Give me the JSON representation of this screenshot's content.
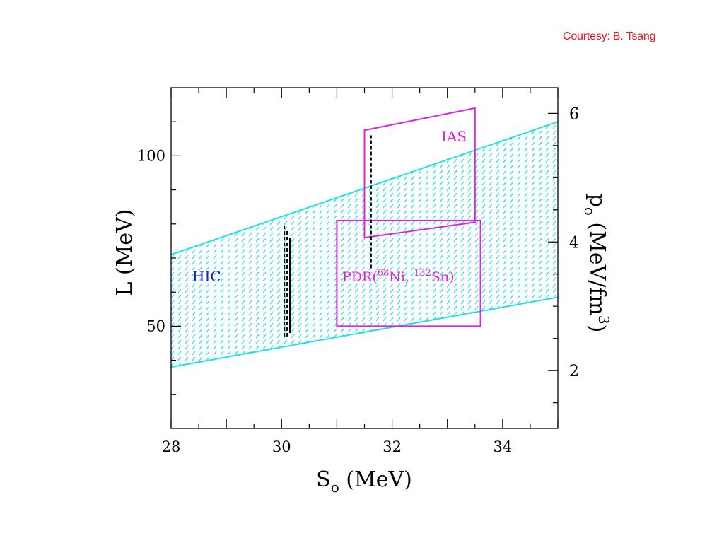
{
  "courtesy": "Courtesy: B. Tsang",
  "colors": {
    "band": "#20e0e8",
    "box": "#e020e0",
    "hic": "#2020c0",
    "courtesy": "#e8141c",
    "axis": "#000000"
  },
  "chart_data": {
    "type": "area",
    "title": "",
    "xlabel": {
      "main": "S",
      "sub": "o",
      "rest": " (MeV)"
    },
    "ylabel": "L (MeV)",
    "y2label": {
      "main": "p",
      "sub": "o",
      "rest1": " (MeV/fm",
      "sup": "3",
      "rest2": ")"
    },
    "xlim": [
      28,
      35
    ],
    "ylim": [
      20,
      120
    ],
    "y2lim": [
      1.1,
      6.4
    ],
    "xticks": [
      28,
      30,
      32,
      34
    ],
    "yticks": [
      50,
      100
    ],
    "y2ticks": [
      2,
      4,
      6
    ],
    "band": {
      "name": "HIC",
      "upper": [
        [
          28,
          71
        ],
        [
          35,
          110
        ]
      ],
      "lower": [
        [
          28,
          38
        ],
        [
          35,
          58.5
        ]
      ]
    },
    "regions": [
      {
        "name": "IAS",
        "polygon": [
          [
            31.5,
            107.5
          ],
          [
            33.5,
            114
          ],
          [
            33.5,
            80.5
          ],
          [
            31.5,
            76
          ]
        ]
      },
      {
        "name": "PDR",
        "label_parts": [
          "PDR(",
          "68",
          "Ni,  ",
          "132",
          "Sn)"
        ],
        "polygon": [
          [
            31.0,
            81
          ],
          [
            33.6,
            81
          ],
          [
            33.6,
            50
          ],
          [
            31.0,
            50
          ]
        ]
      }
    ],
    "vertical_lines": [
      {
        "x": 30.05,
        "y": [
          47,
          80
        ],
        "style": "dashed"
      },
      {
        "x": 30.1,
        "y": [
          47,
          78
        ],
        "style": "dashed"
      },
      {
        "x": 30.15,
        "y": [
          48,
          76
        ],
        "style": "solid"
      },
      {
        "x": 31.62,
        "y": [
          67,
          106
        ],
        "style": "dashed"
      }
    ]
  }
}
